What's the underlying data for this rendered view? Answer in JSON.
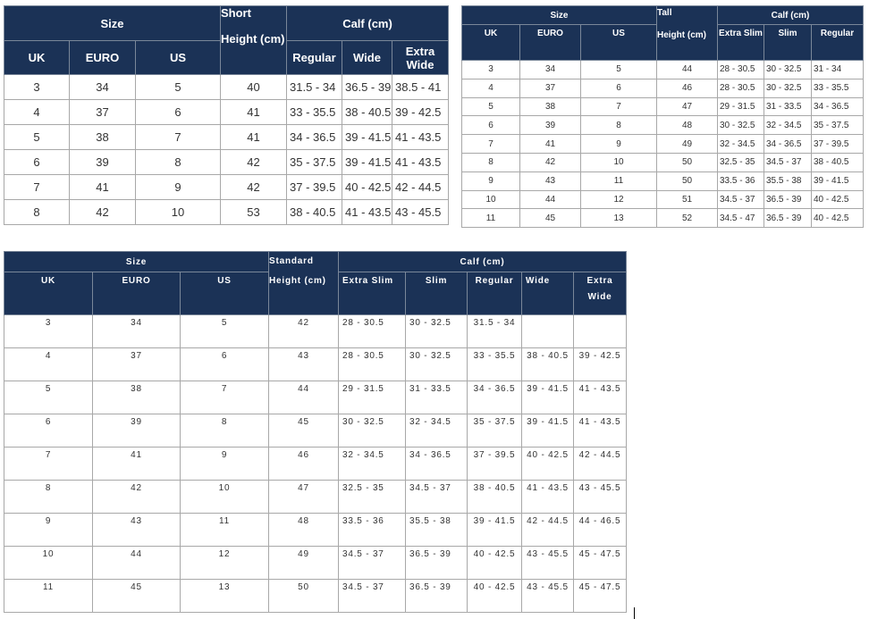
{
  "colors": {
    "header_bg": "#1b3256",
    "header_text": "#ffffff",
    "border": "#a8a8a8"
  },
  "tables": [
    {
      "name": "short",
      "size_label": "Size",
      "height_top": "Short",
      "height_bottom": "Height (cm)",
      "calf_label": "Calf (cm)",
      "size_columns": [
        "UK",
        "EURO",
        "US"
      ],
      "calf_columns": [
        "Regular",
        "Wide",
        "Extra Wide"
      ],
      "rows": [
        [
          "3",
          "34",
          "5",
          "40",
          "31.5 - 34",
          "36.5 - 39",
          "38.5 - 41"
        ],
        [
          "4",
          "37",
          "6",
          "41",
          "33 - 35.5",
          "38 - 40.5",
          "39 - 42.5"
        ],
        [
          "5",
          "38",
          "7",
          "41",
          "34 - 36.5",
          "39 - 41.5",
          "41 - 43.5"
        ],
        [
          "6",
          "39",
          "8",
          "42",
          "35 - 37.5",
          "39 - 41.5",
          "41 - 43.5"
        ],
        [
          "7",
          "41",
          "9",
          "42",
          "37 - 39.5",
          "40 - 42.5",
          "42 - 44.5"
        ],
        [
          "8",
          "42",
          "10",
          "53",
          "38 - 40.5",
          "41 - 43.5",
          "43 - 45.5"
        ]
      ]
    },
    {
      "name": "tall",
      "size_label": "Size",
      "height_top": "Tall",
      "height_bottom": "Height (cm)",
      "calf_label": "Calf (cm)",
      "size_columns": [
        "UK",
        "EURO",
        "US"
      ],
      "calf_columns": [
        "Extra Slim",
        "Slim",
        "Regular"
      ],
      "rows": [
        [
          "3",
          "34",
          "5",
          "44",
          "28 - 30.5",
          "30 - 32.5",
          "31 - 34"
        ],
        [
          "4",
          "37",
          "6",
          "46",
          "28 - 30.5",
          "30 - 32.5",
          "33 - 35.5"
        ],
        [
          "5",
          "38",
          "7",
          "47",
          "29 - 31.5",
          "31 - 33.5",
          "34 - 36.5"
        ],
        [
          "6",
          "39",
          "8",
          "48",
          "30 - 32.5",
          "32 - 34.5",
          "35 - 37.5"
        ],
        [
          "7",
          "41",
          "9",
          "49",
          "32 - 34.5",
          "34 - 36.5",
          "37 - 39.5"
        ],
        [
          "8",
          "42",
          "10",
          "50",
          "32.5 - 35",
          "34.5 - 37",
          "38 - 40.5"
        ],
        [
          "9",
          "43",
          "11",
          "50",
          "33.5 - 36",
          "35.5 - 38",
          "39 - 41.5"
        ],
        [
          "10",
          "44",
          "12",
          "51",
          "34.5 - 37",
          "36.5 - 39",
          "40 - 42.5"
        ],
        [
          "11",
          "45",
          "13",
          "52",
          "34.5 - 47",
          "36.5 - 39",
          "40 - 42.5"
        ]
      ]
    },
    {
      "name": "standard",
      "size_label": "Size",
      "height_top": "Standard",
      "height_bottom": "Height (cm)",
      "calf_label": "Calf (cm)",
      "size_columns": [
        "UK",
        "EURO",
        "US"
      ],
      "calf_columns": [
        "Extra Slim",
        "Slim",
        "Regular",
        "Wide",
        "Extra Wide"
      ],
      "rows": [
        [
          "3",
          "34",
          "5",
          "42",
          "28 - 30.5",
          "30 - 32.5",
          "31.5 - 34",
          "",
          ""
        ],
        [
          "4",
          "37",
          "6",
          "43",
          "28 - 30.5",
          "30 - 32.5",
          "33 - 35.5",
          "38 - 40.5",
          "39 - 42.5"
        ],
        [
          "5",
          "38",
          "7",
          "44",
          "29 - 31.5",
          "31 - 33.5",
          "34 - 36.5",
          "39 - 41.5",
          "41 - 43.5"
        ],
        [
          "6",
          "39",
          "8",
          "45",
          "30 - 32.5",
          "32 - 34.5",
          "35 - 37.5",
          "39 - 41.5",
          "41 - 43.5"
        ],
        [
          "7",
          "41",
          "9",
          "46",
          "32 - 34.5",
          "34 - 36.5",
          "37 - 39.5",
          "40 - 42.5",
          "42 - 44.5"
        ],
        [
          "8",
          "42",
          "10",
          "47",
          "32.5 - 35",
          "34.5 - 37",
          "38 - 40.5",
          "41 - 43.5",
          "43 - 45.5"
        ],
        [
          "9",
          "43",
          "11",
          "48",
          "33.5 - 36",
          "35.5 - 38",
          "39 - 41.5",
          "42 - 44.5",
          "44 - 46.5"
        ],
        [
          "10",
          "44",
          "12",
          "49",
          "34.5 - 37",
          "36.5 - 39",
          "40 - 42.5",
          "43 - 45.5",
          "45 - 47.5"
        ],
        [
          "11",
          "45",
          "13",
          "50",
          "34.5 - 37",
          "36.5 - 39",
          "40 - 42.5",
          "43 - 45.5",
          "45 - 47.5"
        ]
      ]
    }
  ]
}
